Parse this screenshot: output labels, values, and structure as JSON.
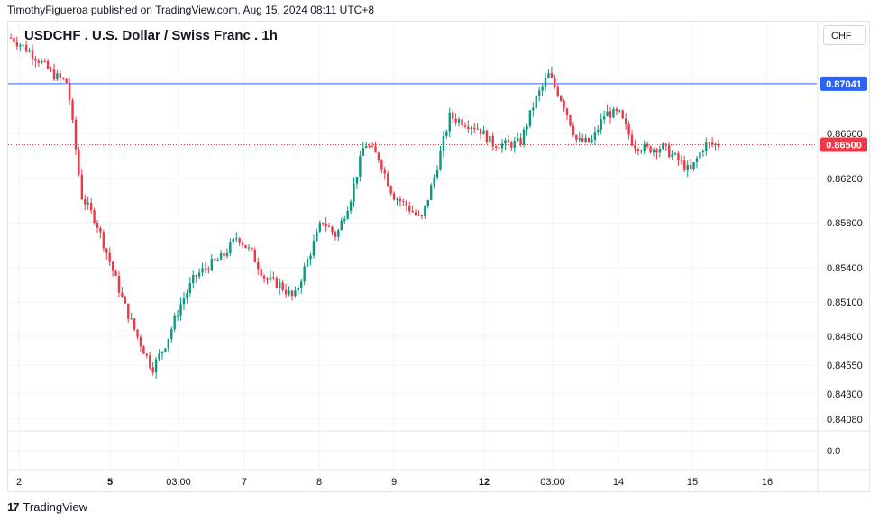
{
  "header": {
    "publish_line": "TimothyFigueroa published on TradingView.com, Aug 15, 2024 08:11 UTC+8"
  },
  "chart_header": {
    "title": "USDCHF . U.S. Dollar / Swiss Franc . 1h",
    "currency": "CHF"
  },
  "footer": {
    "brand": "TradingView",
    "logo_text": "17"
  },
  "colors": {
    "up": "#089981",
    "down": "#f23645",
    "blue_line": "#2962ff",
    "red_line": "#f23645",
    "grid": "#f0f3fa"
  },
  "chart_data": {
    "type": "candlestick",
    "y_ticks": [
      "0.86600",
      "0.86200",
      "0.85800",
      "0.85400",
      "0.85100",
      "0.84800",
      "0.84550",
      "0.84300",
      "0.84080",
      "0.0"
    ],
    "x_ticks": [
      {
        "label": "2",
        "bold": false
      },
      {
        "label": "5",
        "bold": true
      },
      {
        "label": "03:00",
        "bold": false
      },
      {
        "label": "7",
        "bold": false
      },
      {
        "label": "8",
        "bold": false
      },
      {
        "label": "9",
        "bold": false
      },
      {
        "label": "12",
        "bold": true
      },
      {
        "label": "03:00",
        "bold": false
      },
      {
        "label": "14",
        "bold": false
      },
      {
        "label": "15",
        "bold": false
      },
      {
        "label": "16",
        "bold": false
      }
    ],
    "horizontal_line": {
      "value": 0.87041,
      "label": "0.87041"
    },
    "last_price": {
      "value": 0.865,
      "label": "0.86500"
    },
    "price_path": [
      0.8745,
      0.8736,
      0.8725,
      0.8712,
      0.8705,
      0.8604,
      0.8582,
      0.8545,
      0.8508,
      0.8478,
      0.8452,
      0.8475,
      0.8508,
      0.8532,
      0.8542,
      0.855,
      0.8568,
      0.8553,
      0.853,
      0.8525,
      0.8513,
      0.8548,
      0.8582,
      0.8568,
      0.8602,
      0.8652,
      0.8638,
      0.8605,
      0.8595,
      0.8582,
      0.8625,
      0.8675,
      0.867,
      0.8665,
      0.8651,
      0.865,
      0.8652,
      0.8688,
      0.8712,
      0.8688,
      0.8653,
      0.8652,
      0.8678,
      0.8677,
      0.865,
      0.8646,
      0.8648,
      0.8638,
      0.8626,
      0.865,
      0.865
    ]
  }
}
